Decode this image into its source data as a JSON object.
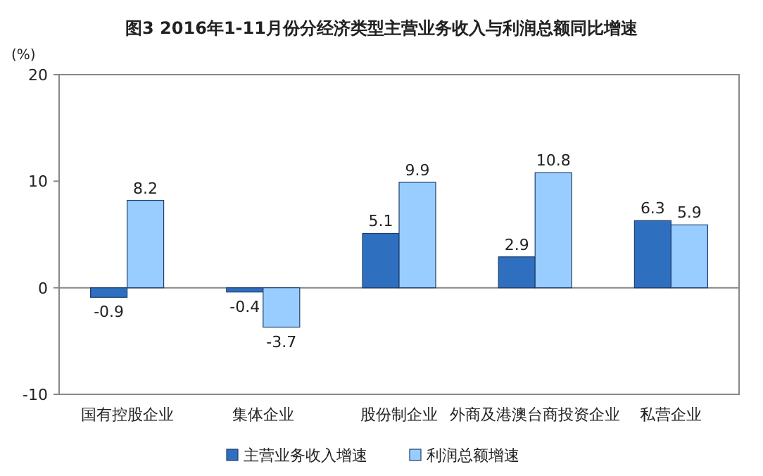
{
  "chart_data": {
    "type": "bar",
    "title": "图3  2016年1-11月份分经济类型主营业务收入与利润总额同比增速",
    "ylabel": "(%)",
    "categories": [
      "国有控股企业",
      "集体企业",
      "股份制企业",
      "外商及港澳台商投资企业",
      "私营企业"
    ],
    "series": [
      {
        "name": "主营业务收入增速",
        "color": "#2f6fbf",
        "values": [
          -0.9,
          -0.4,
          5.1,
          2.9,
          6.3
        ]
      },
      {
        "name": "利润总额增速",
        "color": "#99ccff",
        "values": [
          8.2,
          -3.7,
          9.9,
          10.8,
          5.9
        ]
      }
    ],
    "ylim": [
      -10,
      20
    ],
    "yticks": [
      -10,
      0,
      10,
      20
    ],
    "data_labels": true,
    "legend": "bottom"
  }
}
